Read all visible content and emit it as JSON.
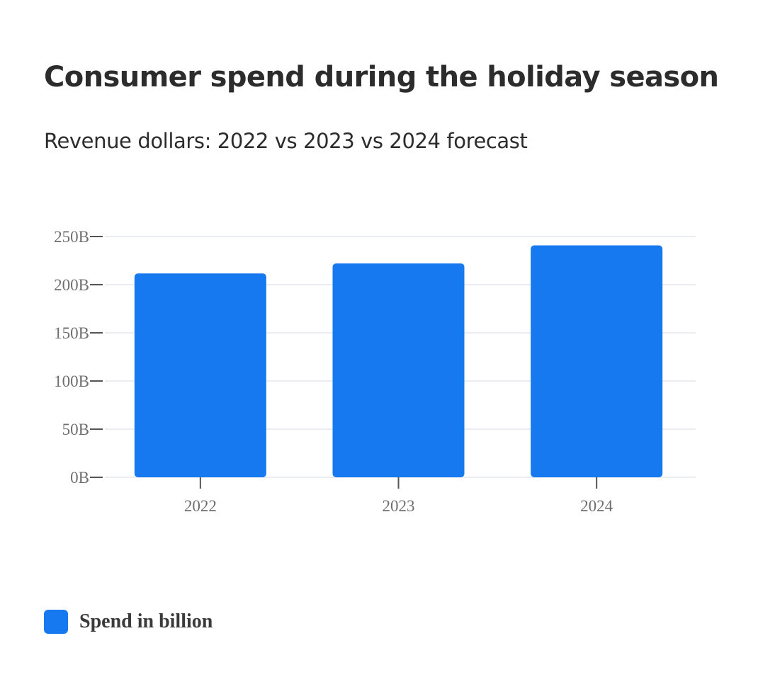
{
  "chart_data": {
    "type": "bar",
    "title": "Consumer spend during the holiday season",
    "subtitle": "Revenue dollars: 2022 vs 2023 vs 2024 forecast",
    "categories": [
      "2022",
      "2023",
      "2024"
    ],
    "series": [
      {
        "name": "Spend in billion",
        "values": [
          211.7,
          222.1,
          240.8
        ]
      }
    ],
    "y_ticks": [
      0,
      50,
      100,
      150,
      200,
      250
    ],
    "y_tick_labels": [
      "0B",
      "50B",
      "100B",
      "150B",
      "200B",
      "250B"
    ],
    "ylim": [
      0,
      250
    ],
    "xlabel": "",
    "ylabel": "",
    "grid": true,
    "legend_position": "bottom-left",
    "colors": {
      "bar": "#1779ef",
      "grid": "#e3e7ef",
      "axis": "#555555",
      "tick_text": "#6e6e6e"
    }
  }
}
